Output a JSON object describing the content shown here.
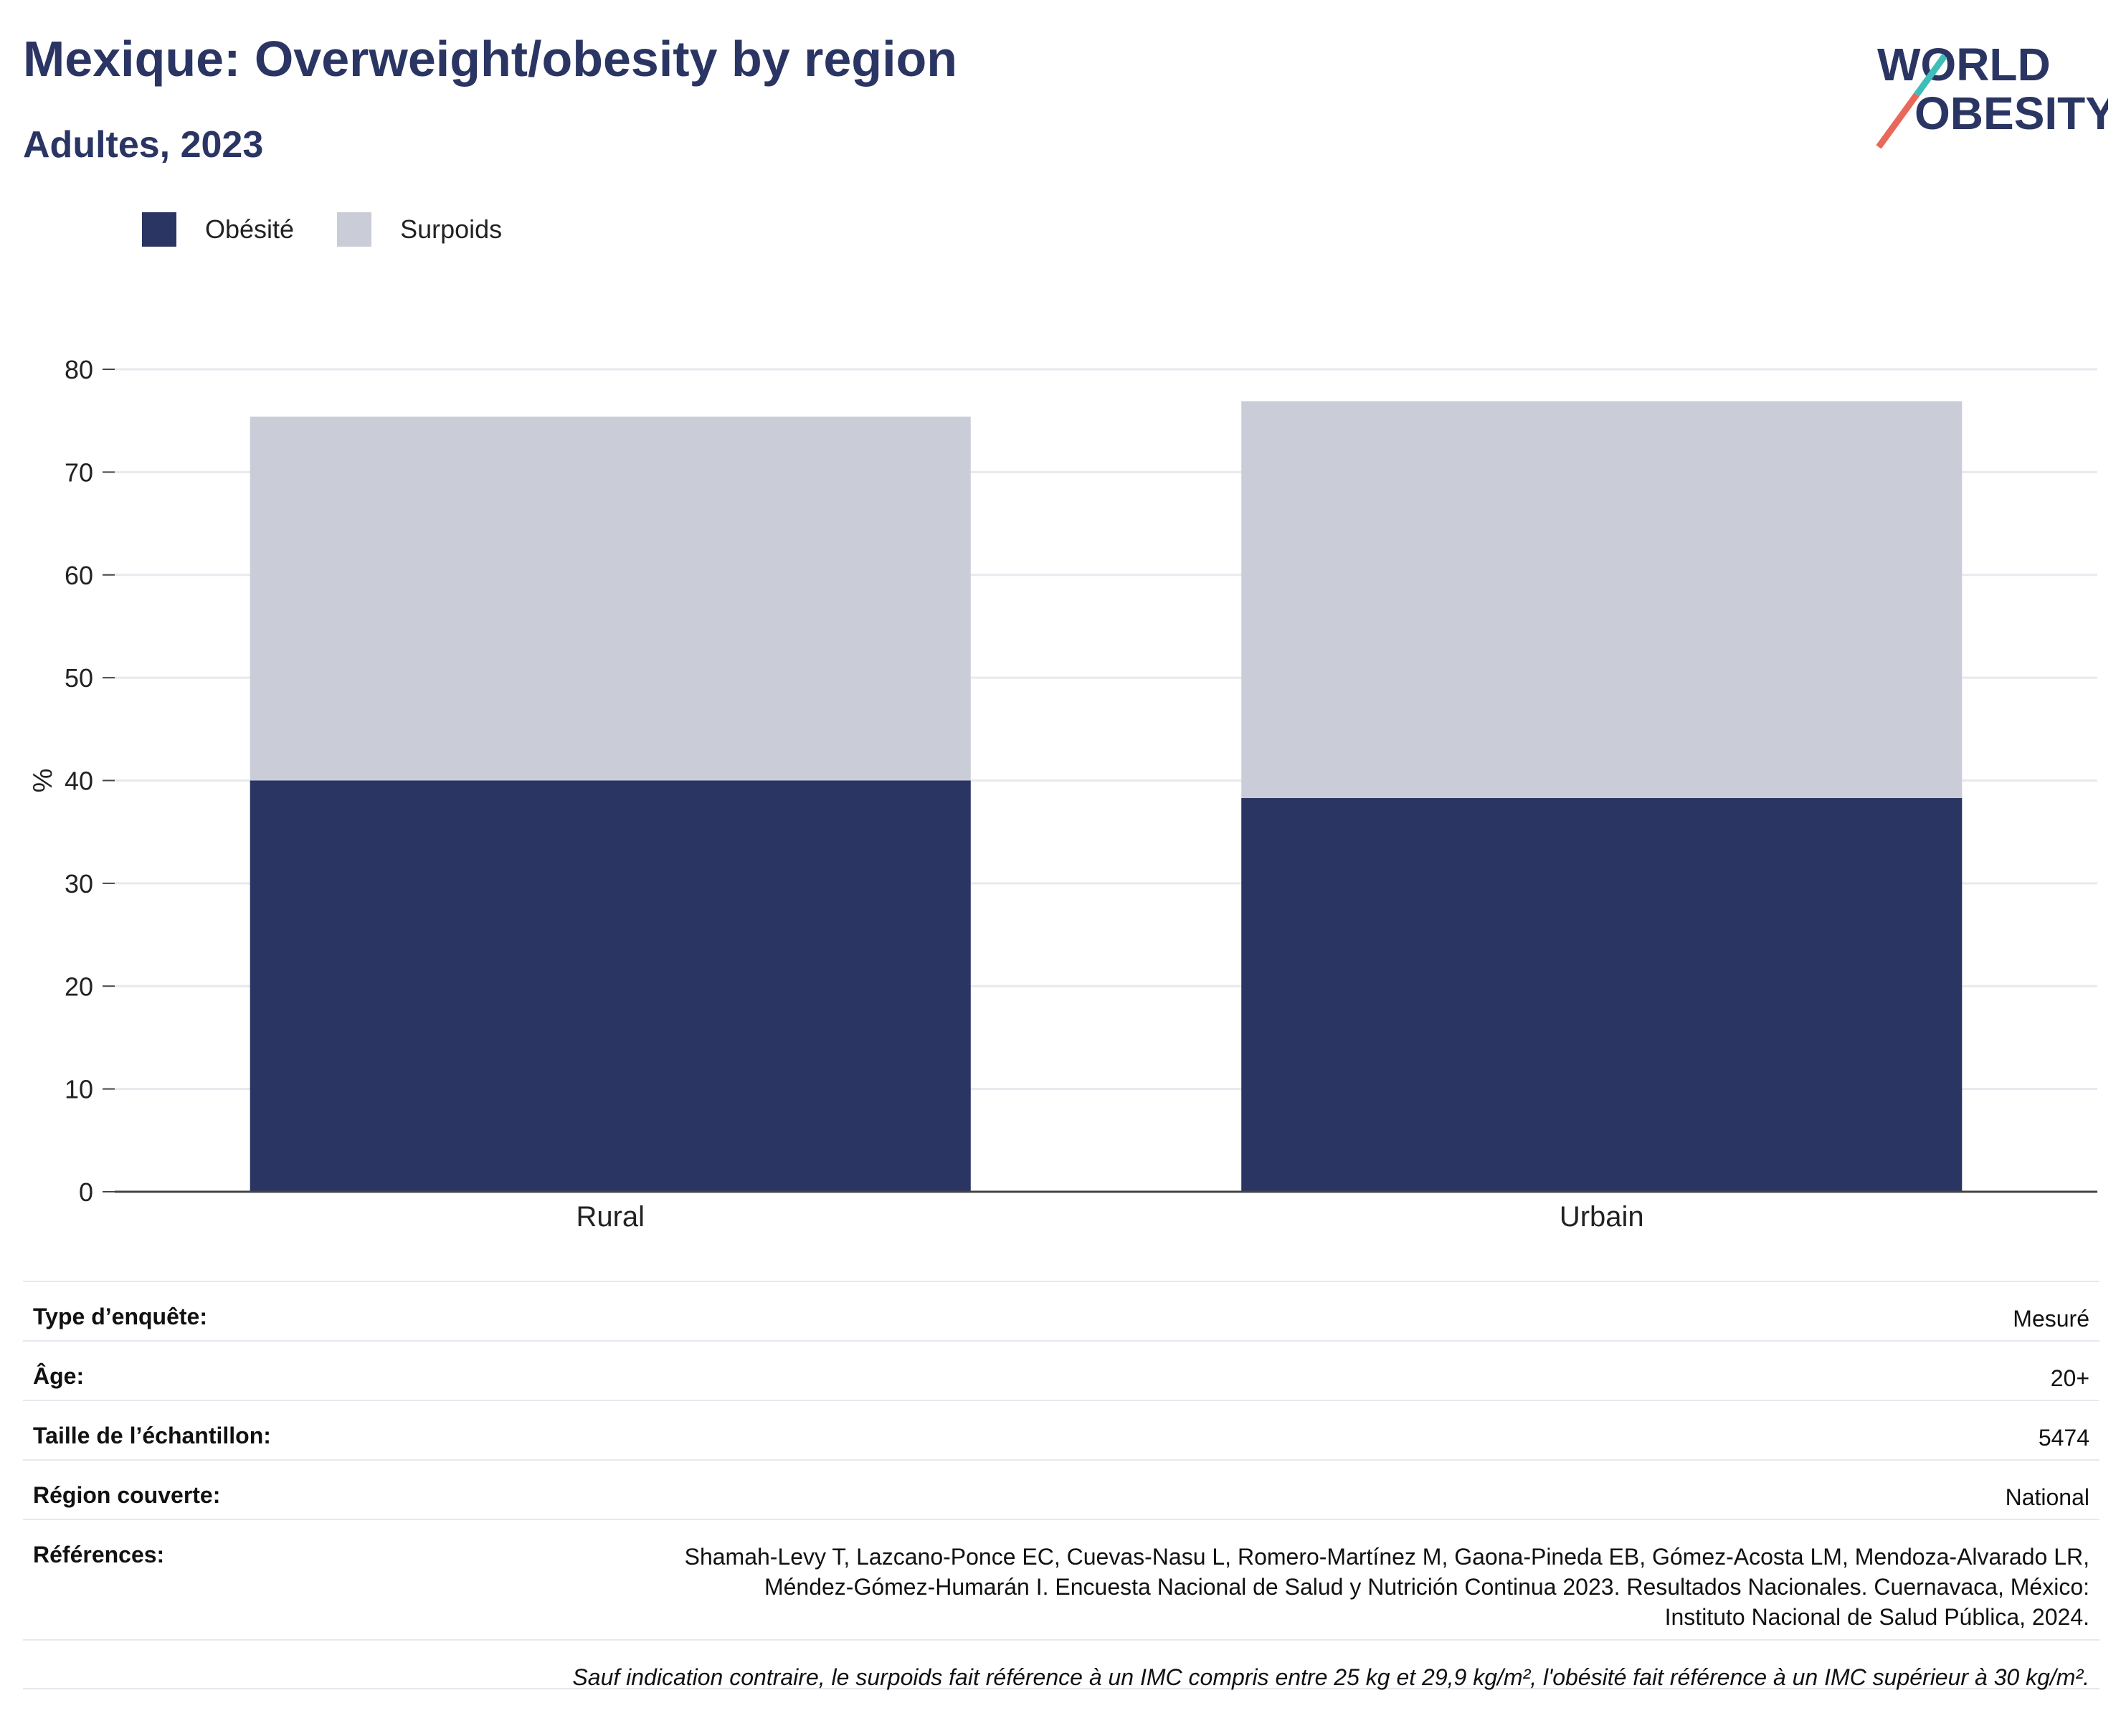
{
  "header": {
    "title": "Mexique: Overweight/obesity by region",
    "subtitle": "Adultes, 2023"
  },
  "logo": {
    "line1": "WORLD",
    "line2": "OBESITY"
  },
  "colors": {
    "obesity": "#2a3563",
    "overweight": "#cacdd8",
    "grid": "#e8e9ef",
    "axis": "#444444",
    "logo_teal": "#3dbfb8",
    "logo_coral": "#e8685a"
  },
  "chart_data": {
    "type": "bar",
    "stacked": true,
    "categories": [
      "Rural",
      "Urbain"
    ],
    "series": [
      {
        "name": "Obésité",
        "values": [
          40.0,
          38.3
        ]
      },
      {
        "name": "Surpoids",
        "values": [
          35.4,
          38.6
        ]
      }
    ],
    "ylabel": "%",
    "ylim": [
      0,
      80
    ],
    "yticks": [
      0,
      10,
      20,
      30,
      40,
      50,
      60,
      70,
      80
    ],
    "grid": true,
    "legend": "top-left"
  },
  "info": {
    "rows": [
      {
        "label": "Type d’enquête:",
        "value": "Mesuré"
      },
      {
        "label": "Âge:",
        "value": "20+"
      },
      {
        "label": "Taille de l’échantillon:",
        "value": "5474"
      },
      {
        "label": "Région couverte:",
        "value": "National"
      }
    ],
    "references_label": "Références:",
    "references": [
      "Shamah-Levy T, Lazcano-Ponce EC, Cuevas-Nasu L, Romero-Martínez M, Gaona-Pineda EB, Gómez-Acosta LM, Mendoza-Alvarado LR,",
      "Méndez-Gómez-Humarán I. Encuesta Nacional de Salud y Nutrición Continua 2023. Resultados Nacionales. Cuernavaca, México:",
      "Instituto Nacional de Salud Pública, 2024."
    ],
    "note": "Sauf indication contraire, le surpoids fait référence à un IMC compris entre 25 kg et 29,9 kg/m², l'obésité fait référence à un IMC supérieur à 30 kg/m²."
  }
}
